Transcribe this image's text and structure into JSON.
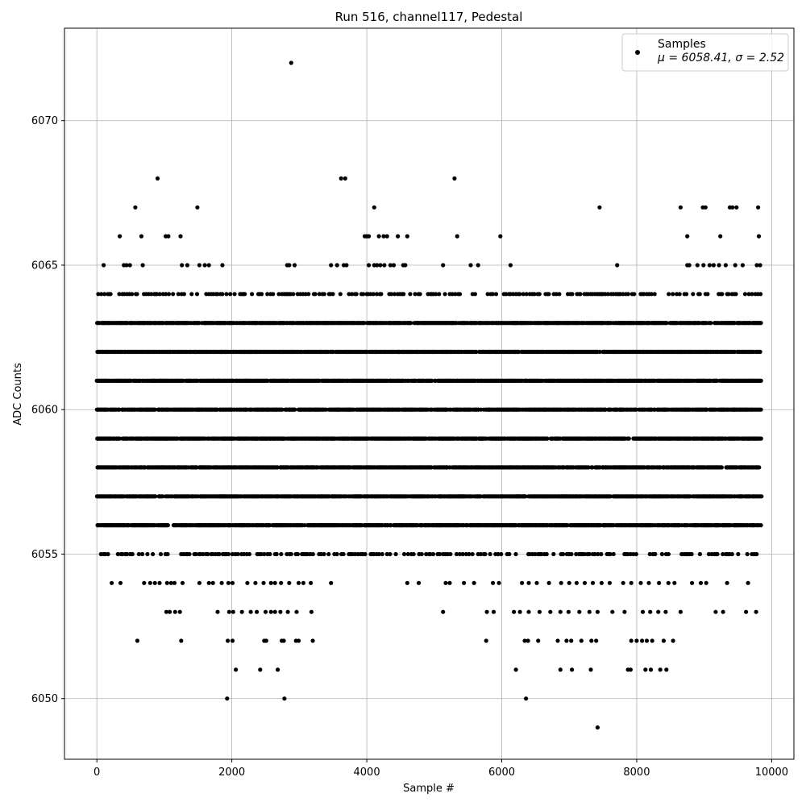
{
  "chart_data": {
    "type": "scatter",
    "title": "Run 516, channel117, Pedestal",
    "xlabel": "Sample #",
    "ylabel": "ADC Counts",
    "xlim": [
      -480,
      10330
    ],
    "ylim": [
      6047.9,
      6073.2
    ],
    "xticks": [
      0,
      2000,
      4000,
      6000,
      8000,
      10000
    ],
    "yticks": [
      6050,
      6055,
      6060,
      6065,
      6070
    ],
    "grid": true,
    "legend_position": "top-right",
    "marker_color": "#000000",
    "series": [
      {
        "name": "Samples",
        "stats_label": "μ = 6058.41, σ = 2.52",
        "x_range": [
          0,
          9850
        ],
        "dense_levels": [
          6055,
          6056,
          6057,
          6058,
          6059,
          6060,
          6061,
          6062,
          6063,
          6064
        ],
        "points": [
          [
            2880,
            6072
          ],
          [
            900,
            6068
          ],
          [
            3620,
            6068
          ],
          [
            3680,
            6068
          ],
          [
            5300,
            6068
          ],
          [
            570,
            6067
          ],
          [
            1490,
            6067
          ],
          [
            4110,
            6067
          ],
          [
            7450,
            6067
          ],
          [
            8650,
            6067
          ],
          [
            8980,
            6067
          ],
          [
            9020,
            6067
          ],
          [
            9380,
            6067
          ],
          [
            9420,
            6067
          ],
          [
            9480,
            6067
          ],
          [
            9800,
            6067
          ],
          [
            340,
            6066
          ],
          [
            660,
            6066
          ],
          [
            1020,
            6066
          ],
          [
            1060,
            6066
          ],
          [
            1240,
            6066
          ],
          [
            3970,
            6066
          ],
          [
            4000,
            6066
          ],
          [
            4030,
            6066
          ],
          [
            4180,
            6066
          ],
          [
            4250,
            6066
          ],
          [
            4300,
            6066
          ],
          [
            4460,
            6066
          ],
          [
            4600,
            6066
          ],
          [
            5340,
            6066
          ],
          [
            5980,
            6066
          ],
          [
            8750,
            6066
          ],
          [
            9240,
            6066
          ],
          [
            9810,
            6066
          ],
          [
            100,
            6065
          ],
          [
            400,
            6065
          ],
          [
            440,
            6065
          ],
          [
            490,
            6065
          ],
          [
            680,
            6065
          ],
          [
            1260,
            6065
          ],
          [
            1340,
            6065
          ],
          [
            1520,
            6065
          ],
          [
            1600,
            6065
          ],
          [
            1660,
            6065
          ],
          [
            1860,
            6065
          ],
          [
            2820,
            6065
          ],
          [
            2850,
            6065
          ],
          [
            2930,
            6065
          ],
          [
            3470,
            6065
          ],
          [
            3560,
            6065
          ],
          [
            3660,
            6065
          ],
          [
            3700,
            6065
          ],
          [
            4030,
            6065
          ],
          [
            4110,
            6065
          ],
          [
            4150,
            6065
          ],
          [
            4200,
            6065
          ],
          [
            4260,
            6065
          ],
          [
            4350,
            6065
          ],
          [
            4400,
            6065
          ],
          [
            4540,
            6065
          ],
          [
            4570,
            6065
          ],
          [
            5130,
            6065
          ],
          [
            5540,
            6065
          ],
          [
            5650,
            6065
          ],
          [
            6130,
            6065
          ],
          [
            7710,
            6065
          ],
          [
            8750,
            6065
          ],
          [
            8780,
            6065
          ],
          [
            8900,
            6065
          ],
          [
            8990,
            6065
          ],
          [
            9080,
            6065
          ],
          [
            9140,
            6065
          ],
          [
            9220,
            6065
          ],
          [
            9320,
            6065
          ],
          [
            9460,
            6065
          ],
          [
            9570,
            6065
          ],
          [
            9780,
            6065
          ],
          [
            9830,
            6065
          ],
          [
            220,
            6054
          ],
          [
            350,
            6054
          ],
          [
            700,
            6054
          ],
          [
            790,
            6054
          ],
          [
            860,
            6054
          ],
          [
            930,
            6054
          ],
          [
            1040,
            6054
          ],
          [
            1100,
            6054
          ],
          [
            1150,
            6054
          ],
          [
            1270,
            6054
          ],
          [
            1520,
            6054
          ],
          [
            1660,
            6054
          ],
          [
            1720,
            6054
          ],
          [
            1850,
            6054
          ],
          [
            1950,
            6054
          ],
          [
            2010,
            6054
          ],
          [
            2230,
            6054
          ],
          [
            2350,
            6054
          ],
          [
            2470,
            6054
          ],
          [
            2580,
            6054
          ],
          [
            2640,
            6054
          ],
          [
            2730,
            6054
          ],
          [
            2850,
            6054
          ],
          [
            2990,
            6054
          ],
          [
            3060,
            6054
          ],
          [
            3170,
            6054
          ],
          [
            3470,
            6054
          ],
          [
            4600,
            6054
          ],
          [
            4770,
            6054
          ],
          [
            5170,
            6054
          ],
          [
            5230,
            6054
          ],
          [
            5440,
            6054
          ],
          [
            5590,
            6054
          ],
          [
            5870,
            6054
          ],
          [
            5960,
            6054
          ],
          [
            6300,
            6054
          ],
          [
            6400,
            6054
          ],
          [
            6520,
            6054
          ],
          [
            6700,
            6054
          ],
          [
            6880,
            6054
          ],
          [
            7000,
            6054
          ],
          [
            7110,
            6054
          ],
          [
            7230,
            6054
          ],
          [
            7350,
            6054
          ],
          [
            7480,
            6054
          ],
          [
            7600,
            6054
          ],
          [
            7800,
            6054
          ],
          [
            7920,
            6054
          ],
          [
            8060,
            6054
          ],
          [
            8180,
            6054
          ],
          [
            8330,
            6054
          ],
          [
            8470,
            6054
          ],
          [
            8560,
            6054
          ],
          [
            8820,
            6054
          ],
          [
            8950,
            6054
          ],
          [
            9030,
            6054
          ],
          [
            9340,
            6054
          ],
          [
            9650,
            6054
          ],
          [
            1030,
            6053
          ],
          [
            1080,
            6053
          ],
          [
            1160,
            6053
          ],
          [
            1230,
            6053
          ],
          [
            1790,
            6053
          ],
          [
            1960,
            6053
          ],
          [
            2020,
            6053
          ],
          [
            2150,
            6053
          ],
          [
            2280,
            6053
          ],
          [
            2370,
            6053
          ],
          [
            2500,
            6053
          ],
          [
            2580,
            6053
          ],
          [
            2640,
            6053
          ],
          [
            2720,
            6053
          ],
          [
            2830,
            6053
          ],
          [
            2960,
            6053
          ],
          [
            3180,
            6053
          ],
          [
            5130,
            6053
          ],
          [
            5780,
            6053
          ],
          [
            5880,
            6053
          ],
          [
            6180,
            6053
          ],
          [
            6270,
            6053
          ],
          [
            6400,
            6053
          ],
          [
            6560,
            6053
          ],
          [
            6720,
            6053
          ],
          [
            6870,
            6053
          ],
          [
            6990,
            6053
          ],
          [
            7150,
            6053
          ],
          [
            7300,
            6053
          ],
          [
            7420,
            6053
          ],
          [
            7640,
            6053
          ],
          [
            7820,
            6053
          ],
          [
            8090,
            6053
          ],
          [
            8200,
            6053
          ],
          [
            8320,
            6053
          ],
          [
            8430,
            6053
          ],
          [
            8650,
            6053
          ],
          [
            9170,
            6053
          ],
          [
            9280,
            6053
          ],
          [
            9620,
            6053
          ],
          [
            9770,
            6053
          ],
          [
            600,
            6052
          ],
          [
            1250,
            6052
          ],
          [
            1940,
            6052
          ],
          [
            2010,
            6052
          ],
          [
            2480,
            6052
          ],
          [
            2510,
            6052
          ],
          [
            2740,
            6052
          ],
          [
            2770,
            6052
          ],
          [
            2950,
            6052
          ],
          [
            2990,
            6052
          ],
          [
            3200,
            6052
          ],
          [
            5770,
            6052
          ],
          [
            6340,
            6052
          ],
          [
            6390,
            6052
          ],
          [
            6540,
            6052
          ],
          [
            6830,
            6052
          ],
          [
            6960,
            6052
          ],
          [
            7030,
            6052
          ],
          [
            7180,
            6052
          ],
          [
            7330,
            6052
          ],
          [
            7400,
            6052
          ],
          [
            7920,
            6052
          ],
          [
            8000,
            6052
          ],
          [
            8080,
            6052
          ],
          [
            8150,
            6052
          ],
          [
            8230,
            6052
          ],
          [
            8400,
            6052
          ],
          [
            8540,
            6052
          ],
          [
            2060,
            6051
          ],
          [
            2420,
            6051
          ],
          [
            2680,
            6051
          ],
          [
            6210,
            6051
          ],
          [
            6870,
            6051
          ],
          [
            7040,
            6051
          ],
          [
            7320,
            6051
          ],
          [
            7870,
            6051
          ],
          [
            7910,
            6051
          ],
          [
            8130,
            6051
          ],
          [
            8210,
            6051
          ],
          [
            8350,
            6051
          ],
          [
            8440,
            6051
          ],
          [
            1930,
            6050
          ],
          [
            2780,
            6050
          ],
          [
            6360,
            6050
          ],
          [
            7420,
            6049
          ]
        ]
      }
    ]
  }
}
